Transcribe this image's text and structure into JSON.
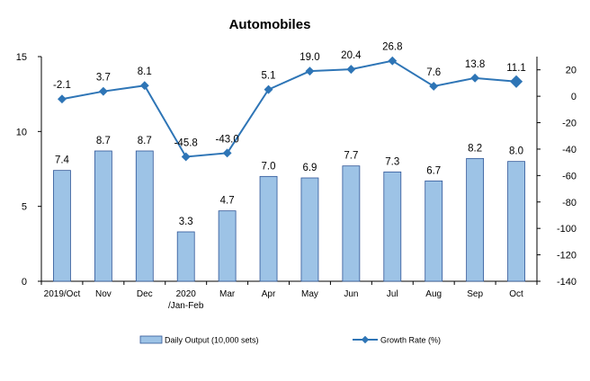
{
  "chart_data": {
    "type": "bar+line",
    "title": "Automobiles",
    "categories": [
      [
        "2019/Oct"
      ],
      [
        "Nov"
      ],
      [
        "Dec"
      ],
      [
        "2020",
        "/Jan-Feb"
      ],
      [
        "Mar"
      ],
      [
        "Apr"
      ],
      [
        "May"
      ],
      [
        "Jun"
      ],
      [
        "Jul"
      ],
      [
        "Aug"
      ],
      [
        "Sep"
      ],
      [
        "Oct"
      ]
    ],
    "series": [
      {
        "name": "Daily Output (10,000 sets)",
        "type": "bar",
        "axis": "left",
        "color": "#9DC3E6",
        "edge_color": "#2F5597",
        "values": [
          7.4,
          8.7,
          8.7,
          3.3,
          4.7,
          7.0,
          6.9,
          7.7,
          7.3,
          6.7,
          8.2,
          8.0
        ],
        "labels": [
          "7.4",
          "8.7",
          "8.7",
          "3.3",
          "4.7",
          "7.0",
          "6.9",
          "7.7",
          "7.3",
          "6.7",
          "8.2",
          "8.0"
        ]
      },
      {
        "name": "Growth Rate (%)",
        "type": "line",
        "axis": "right",
        "color": "#2E75B6",
        "values": [
          -2.1,
          3.7,
          8.1,
          -45.8,
          -43.0,
          5.1,
          19.0,
          20.4,
          26.8,
          7.6,
          13.8,
          11.1
        ],
        "labels": [
          "-2.1",
          "3.7",
          "8.1",
          "-45.8",
          "-43.0",
          "5.1",
          "19.0",
          "20.4",
          "26.8",
          "7.6",
          "13.8",
          "11.1"
        ]
      }
    ],
    "y_left": {
      "min": 0,
      "max": 15,
      "ticks": [
        "0",
        "5",
        "10",
        "15"
      ]
    },
    "y_right": {
      "min": -140,
      "max": 30,
      "ticks": [
        "20",
        "0",
        "-20",
        "-40",
        "-60",
        "-80",
        "-100",
        "-120",
        "-140"
      ]
    },
    "grid": false,
    "legend_position": "bottom"
  }
}
